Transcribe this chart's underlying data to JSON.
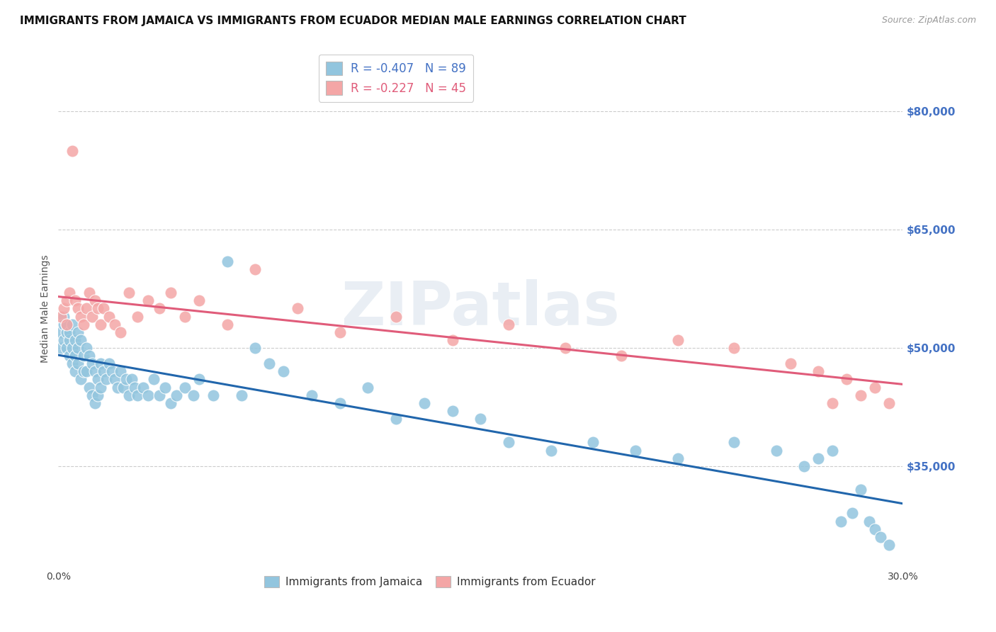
{
  "title": "IMMIGRANTS FROM JAMAICA VS IMMIGRANTS FROM ECUADOR MEDIAN MALE EARNINGS CORRELATION CHART",
  "source": "Source: ZipAtlas.com",
  "ylabel": "Median Male Earnings",
  "xlim": [
    0.0,
    0.3
  ],
  "ylim": [
    22000,
    88000
  ],
  "xticks": [
    0.0,
    0.05,
    0.1,
    0.15,
    0.2,
    0.25,
    0.3
  ],
  "xticklabels": [
    "0.0%",
    "",
    "",
    "",
    "",
    "",
    "30.0%"
  ],
  "yticks_right": [
    35000,
    50000,
    65000,
    80000
  ],
  "ytick_labels_right": [
    "$35,000",
    "$50,000",
    "$65,000",
    "$80,000"
  ],
  "legend1_label": "R = -0.407   N = 89",
  "legend2_label": "R = -0.227   N = 45",
  "legend_bottom1": "Immigrants from Jamaica",
  "legend_bottom2": "Immigrants from Ecuador",
  "color_jamaica": "#92c5de",
  "color_ecuador": "#f4a6a6",
  "color_line_jamaica": "#2166ac",
  "color_line_ecuador": "#e05c7a",
  "color_axis_right": "#4472c4",
  "background_color": "#ffffff",
  "watermark": "ZIPatlas",
  "title_fontsize": 11,
  "axis_label_fontsize": 10,
  "tick_fontsize": 10,
  "jamaica_x": [
    0.001,
    0.001,
    0.002,
    0.002,
    0.002,
    0.003,
    0.003,
    0.003,
    0.004,
    0.004,
    0.004,
    0.005,
    0.005,
    0.005,
    0.006,
    0.006,
    0.006,
    0.007,
    0.007,
    0.007,
    0.008,
    0.008,
    0.009,
    0.009,
    0.01,
    0.01,
    0.011,
    0.011,
    0.012,
    0.012,
    0.013,
    0.013,
    0.014,
    0.014,
    0.015,
    0.015,
    0.016,
    0.017,
    0.018,
    0.019,
    0.02,
    0.021,
    0.022,
    0.023,
    0.024,
    0.025,
    0.026,
    0.027,
    0.028,
    0.03,
    0.032,
    0.034,
    0.036,
    0.038,
    0.04,
    0.042,
    0.045,
    0.048,
    0.05,
    0.055,
    0.06,
    0.065,
    0.07,
    0.075,
    0.08,
    0.09,
    0.1,
    0.11,
    0.12,
    0.13,
    0.14,
    0.15,
    0.16,
    0.175,
    0.19,
    0.205,
    0.22,
    0.24,
    0.255,
    0.265,
    0.27,
    0.275,
    0.278,
    0.282,
    0.285,
    0.288,
    0.29,
    0.292,
    0.295
  ],
  "jamaica_y": [
    52000,
    50000,
    54000,
    51000,
    53000,
    52000,
    50000,
    53000,
    51000,
    49000,
    52000,
    50000,
    48000,
    53000,
    51000,
    49000,
    47000,
    52000,
    50000,
    48000,
    51000,
    46000,
    49000,
    47000,
    50000,
    47000,
    49000,
    45000,
    48000,
    44000,
    47000,
    43000,
    46000,
    44000,
    48000,
    45000,
    47000,
    46000,
    48000,
    47000,
    46000,
    45000,
    47000,
    45000,
    46000,
    44000,
    46000,
    45000,
    44000,
    45000,
    44000,
    46000,
    44000,
    45000,
    43000,
    44000,
    45000,
    44000,
    46000,
    44000,
    61000,
    44000,
    50000,
    48000,
    47000,
    44000,
    43000,
    45000,
    41000,
    43000,
    42000,
    41000,
    38000,
    37000,
    38000,
    37000,
    36000,
    38000,
    37000,
    35000,
    36000,
    37000,
    28000,
    29000,
    32000,
    28000,
    27000,
    26000,
    25000
  ],
  "ecuador_x": [
    0.001,
    0.002,
    0.003,
    0.003,
    0.004,
    0.005,
    0.006,
    0.007,
    0.008,
    0.009,
    0.01,
    0.011,
    0.012,
    0.013,
    0.014,
    0.015,
    0.016,
    0.018,
    0.02,
    0.022,
    0.025,
    0.028,
    0.032,
    0.036,
    0.04,
    0.045,
    0.05,
    0.06,
    0.07,
    0.085,
    0.1,
    0.12,
    0.14,
    0.16,
    0.18,
    0.2,
    0.22,
    0.24,
    0.26,
    0.27,
    0.275,
    0.28,
    0.285,
    0.29,
    0.295
  ],
  "ecuador_y": [
    54000,
    55000,
    56000,
    53000,
    57000,
    75000,
    56000,
    55000,
    54000,
    53000,
    55000,
    57000,
    54000,
    56000,
    55000,
    53000,
    55000,
    54000,
    53000,
    52000,
    57000,
    54000,
    56000,
    55000,
    57000,
    54000,
    56000,
    53000,
    60000,
    55000,
    52000,
    54000,
    51000,
    53000,
    50000,
    49000,
    51000,
    50000,
    48000,
    47000,
    43000,
    46000,
    44000,
    45000,
    43000
  ]
}
